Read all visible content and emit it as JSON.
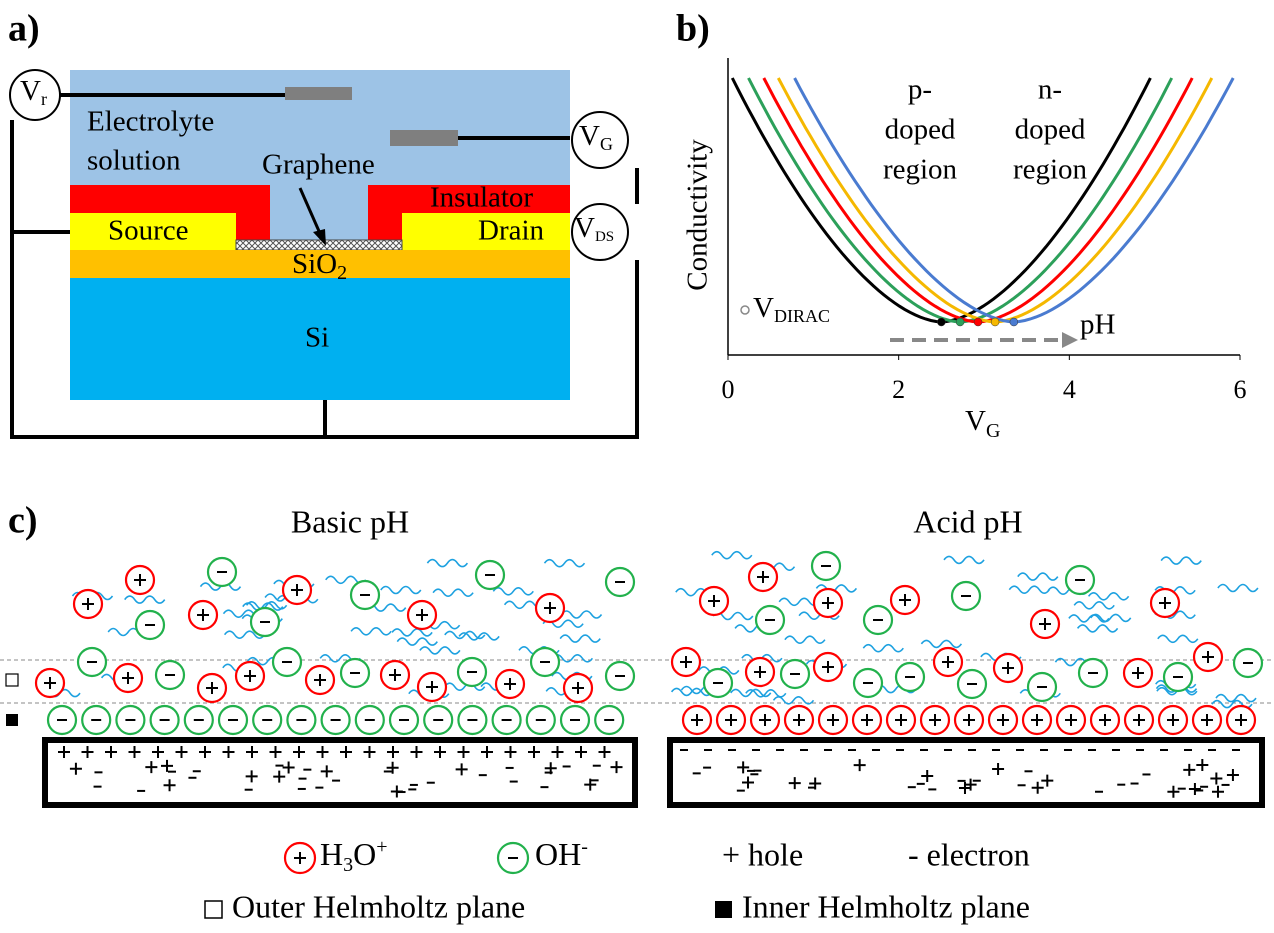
{
  "panel_labels": [
    "a)",
    "b)",
    "c)"
  ],
  "device": {
    "electrolyte": [
      "Electrolyte",
      "solution"
    ],
    "graphene": "Graphene",
    "insulator": "Insulator",
    "source": "Source",
    "drain": "Drain",
    "oxide": {
      "base": "SiO",
      "sub": "2"
    },
    "substrate": "Si",
    "meters": [
      {
        "base": "V",
        "sub": "r"
      },
      {
        "base": "V",
        "sub": "G"
      },
      {
        "base": "V",
        "sub": "DS"
      }
    ]
  },
  "chart_data": {
    "type": "line",
    "ylabel": "Conductivity",
    "xlabel": {
      "base": "V",
      "sub": "G"
    },
    "xlim": [
      0,
      6
    ],
    "xticks": [
      0,
      2,
      4,
      6
    ],
    "dirac_x": [
      2.5,
      2.72,
      2.93,
      3.13,
      3.35
    ],
    "colors": [
      "#000000",
      "#2ca05a",
      "#ff0000",
      "#f5b800",
      "#4a7bd0"
    ],
    "annotations": {
      "p_region": [
        "p-",
        "doped",
        "region"
      ],
      "n_region": [
        "n-",
        "doped",
        "region"
      ],
      "dirac": {
        "base": "V",
        "sub": "DIRAC"
      },
      "ph": "pH"
    }
  },
  "double_layer": {
    "titles": [
      "Basic pH",
      "Acid pH"
    ],
    "legend": {
      "h3o": {
        "base": "H",
        "sub": "3",
        "mid": "O",
        "sup": "+"
      },
      "oh": {
        "base": "OH",
        "sup": "-"
      },
      "hole": "+ hole",
      "electron": "- electron",
      "outer": "Outer Helmholtz plane",
      "inner": "Inner Helmholtz plane"
    }
  }
}
